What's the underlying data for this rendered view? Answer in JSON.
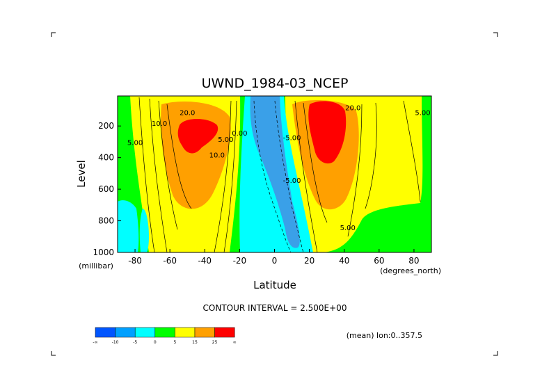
{
  "chart_data": {
    "type": "heatmap",
    "title": "UWND_1984-03_NCEP",
    "xlabel": "Latitude",
    "ylabel": "Level",
    "x_unit": "(degrees_north)",
    "y_unit": "(millibar)",
    "xlim": [
      -90,
      90
    ],
    "ylim": [
      1000,
      10
    ],
    "x_ticks": [
      "-80",
      "-60",
      "-40",
      "-20",
      "0",
      "20",
      "40",
      "60",
      "80"
    ],
    "x_tick_values": [
      -80,
      -60,
      -40,
      -20,
      0,
      20,
      40,
      60,
      80
    ],
    "y_ticks": [
      "200",
      "400",
      "600",
      "800",
      "1000"
    ],
    "y_tick_values": [
      200,
      400,
      600,
      800,
      1000
    ],
    "contour_interval_text": "CONTOUR INTERVAL = 2.500E+00",
    "footer_text": "(mean) lon:0..357.5",
    "contour_labels": [
      {
        "text": "20.0",
        "lat": -50,
        "lev": 130
      },
      {
        "text": "10.0",
        "lat": -66,
        "lev": 200
      },
      {
        "text": "5.00",
        "lat": -80,
        "lev": 320
      },
      {
        "text": "10.0",
        "lat": -33,
        "lev": 400
      },
      {
        "text": "5.00",
        "lat": -28,
        "lev": 300
      },
      {
        "text": "0.00",
        "lat": -20,
        "lev": 260
      },
      {
        "text": "-5.00",
        "lat": 10,
        "lev": 560
      },
      {
        "text": "-5.00",
        "lat": 10,
        "lev": 290
      },
      {
        "text": "5.00",
        "lat": 85,
        "lev": 130
      },
      {
        "text": "20.0",
        "lat": 45,
        "lev": 100
      },
      {
        "text": "5.00",
        "lat": 42,
        "lev": 860
      }
    ],
    "legend": {
      "colors": [
        "#0055ff",
        "#00a0ff",
        "#00ffff",
        "#00ff00",
        "#ffff00",
        "#ffa000",
        "#ff0000"
      ],
      "labels": [
        "-∞",
        "-10",
        "-5",
        "0",
        "5",
        "15",
        "25",
        "∞"
      ]
    }
  }
}
